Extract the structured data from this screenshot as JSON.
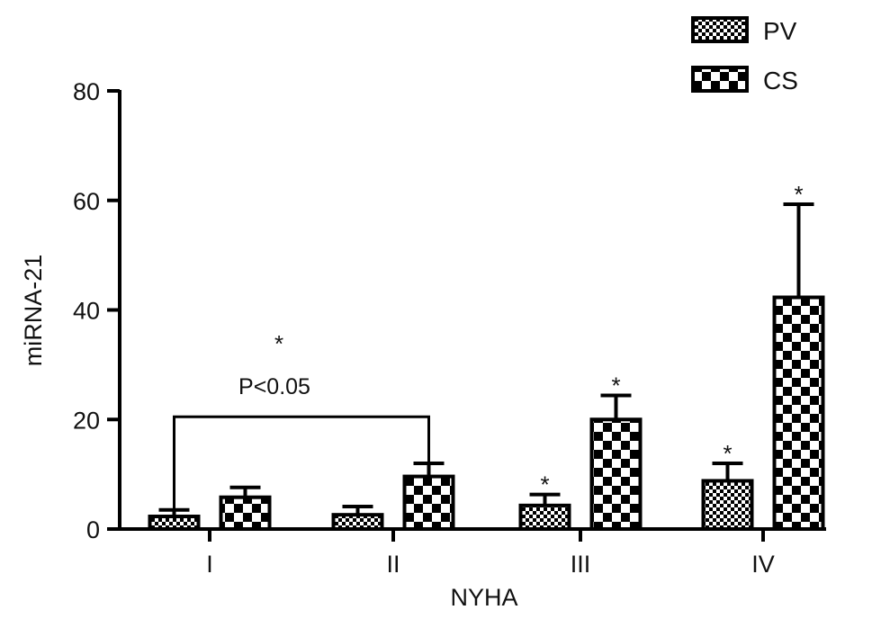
{
  "chart_data": {
    "type": "bar",
    "xlabel": "NYHA",
    "ylabel": "miRNA-21",
    "ylim": [
      0,
      80
    ],
    "yticks": [
      0,
      20,
      40,
      60,
      80
    ],
    "categories": [
      "I",
      "II",
      "III",
      "IV"
    ],
    "series": [
      {
        "name": "PV",
        "pattern": "fine-checker",
        "values": [
          2.3,
          2.6,
          4.3,
          8.8
        ],
        "errors": [
          1.2,
          1.5,
          2.0,
          3.2
        ],
        "significance": [
          "",
          "",
          "*",
          "*"
        ]
      },
      {
        "name": "CS",
        "pattern": "coarse-checker",
        "values": [
          5.8,
          9.6,
          20.0,
          42.3
        ],
        "errors": [
          1.8,
          2.4,
          4.4,
          17.0
        ],
        "significance": [
          "",
          "",
          "*",
          "*"
        ]
      }
    ],
    "legend_position": "top-right",
    "grid": false,
    "bracket_annotation": {
      "from_category": "I",
      "from_series": "PV",
      "to_category": "II",
      "to_series": "CS",
      "level": 20.5,
      "star": "*",
      "text": "P<0.05"
    }
  },
  "colors": {
    "bar_dark": "#000000",
    "bar_light": "#ffffff",
    "axis": "#000000"
  }
}
